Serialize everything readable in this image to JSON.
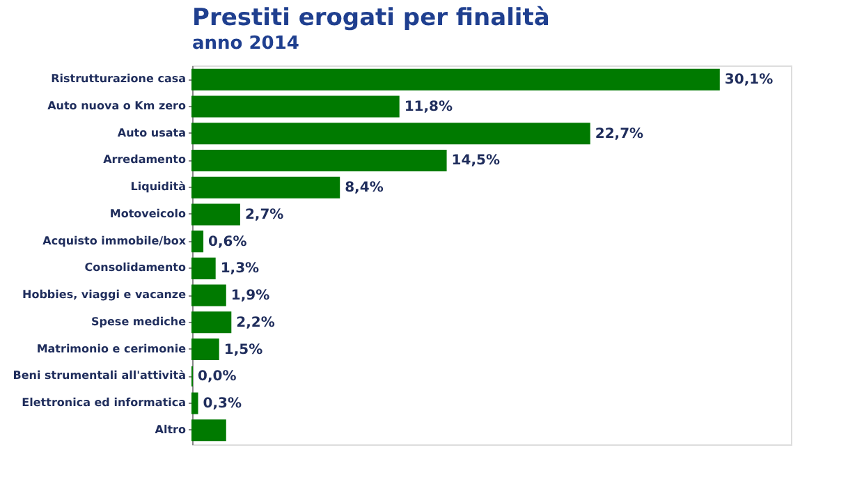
{
  "chart_data": {
    "type": "bar",
    "orientation": "horizontal",
    "title": "Prestiti erogati per finalità",
    "subtitle": "anno 2014",
    "categories": [
      "Ristrutturazione casa",
      "Auto nuova o Km zero",
      "Auto usata",
      "Arredamento",
      "Liquidità",
      "Motoveicolo",
      "Acquisto immobile/box",
      "Consolidamento",
      "Hobbies, viaggi e vacanze",
      "Spese mediche",
      "Matrimonio e cerimonie",
      "Beni strumentali all'attività",
      "Elettronica ed informatica",
      "Altro"
    ],
    "values": [
      30.1,
      11.8,
      22.7,
      14.5,
      8.4,
      2.7,
      0.6,
      1.3,
      1.9,
      2.2,
      1.5,
      0.0,
      0.3,
      1.9
    ],
    "value_labels": [
      "30,1%",
      "11,8%",
      "22,7%",
      "14,5%",
      "8,4%",
      "2,7%",
      "0,6%",
      "1,3%",
      "1,9%",
      "2,2%",
      "1,5%",
      "0,0%",
      "0,3%",
      null
    ],
    "color": "#007a00",
    "grid": false
  }
}
